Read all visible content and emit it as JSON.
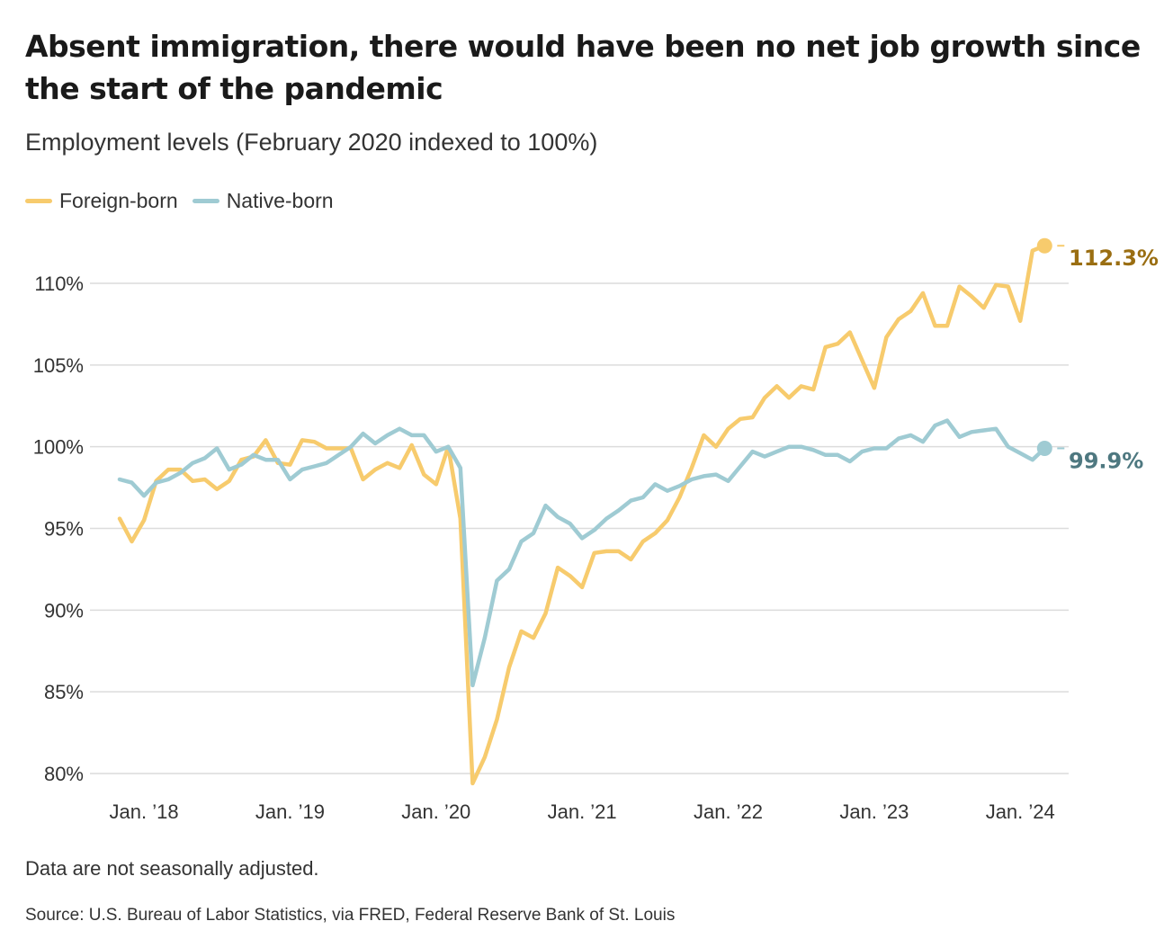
{
  "title": "Absent immigration, there would have been no net job growth since the start of the pandemic",
  "subtitle": "Employment levels (February 2020 indexed to 100%)",
  "note": "Data are not seasonally adjusted.",
  "source": "Source: U.S. Bureau of Labor Statistics, via FRED, Federal Reserve Bank of St. Louis",
  "colors": {
    "foreign": "#f7cb6d",
    "native": "#9fcbd3",
    "foreign_label": "#9a6e12",
    "native_label": "#4e7880",
    "grid": "#dcdcdc"
  },
  "chart_data": {
    "type": "line",
    "title": "Absent immigration, there would have been no net job growth since the start of the pandemic",
    "subtitle": "Employment levels (February 2020 indexed to 100%)",
    "x_start": "2017-11",
    "x_end": "2024-03",
    "x_frequency": "monthly",
    "ylim": [
      80,
      110
    ],
    "yticks": [
      80,
      85,
      90,
      95,
      100,
      105,
      110
    ],
    "ytick_labels": [
      "80%",
      "85%",
      "90%",
      "95%",
      "100%",
      "105%",
      "110%"
    ],
    "xtick_labels": [
      "Jan. ’18",
      "Jan. ’19",
      "Jan. ’20",
      "Jan. ’21",
      "Jan. ’22",
      "Jan. ’23",
      "Jan. ’24"
    ],
    "xtick_month_index": [
      2,
      14,
      26,
      38,
      50,
      62,
      74
    ],
    "grid": true,
    "legend_position": "top-left",
    "series": [
      {
        "name": "Foreign-born",
        "end_label": "112.3%",
        "values": [
          95.6,
          94.2,
          95.5,
          97.9,
          98.6,
          98.6,
          97.9,
          98.0,
          97.4,
          97.9,
          99.2,
          99.4,
          100.4,
          99.0,
          98.9,
          100.4,
          100.3,
          99.9,
          99.9,
          99.9,
          98.0,
          98.6,
          99.0,
          98.7,
          100.1,
          98.3,
          97.7,
          100.0,
          95.6,
          79.4,
          81.0,
          83.3,
          86.5,
          88.7,
          88.3,
          89.8,
          92.6,
          92.1,
          91.4,
          93.5,
          93.6,
          93.6,
          93.1,
          94.2,
          94.7,
          95.5,
          96.9,
          98.7,
          100.7,
          100.0,
          101.1,
          101.7,
          101.8,
          103.0,
          103.7,
          103.0,
          103.7,
          103.5,
          106.1,
          106.3,
          107.0,
          105.3,
          103.6,
          106.7,
          107.8,
          108.3,
          109.4,
          107.4,
          107.4,
          109.8,
          109.2,
          108.5,
          109.9,
          109.8,
          107.7,
          112.0,
          112.3
        ]
      },
      {
        "name": "Native-born",
        "end_label": "99.9%",
        "values": [
          98.0,
          97.8,
          97.0,
          97.8,
          98.0,
          98.4,
          99.0,
          99.3,
          99.9,
          98.6,
          98.9,
          99.5,
          99.2,
          99.2,
          98.0,
          98.6,
          98.8,
          99.0,
          99.5,
          100.0,
          100.8,
          100.2,
          100.7,
          101.1,
          100.7,
          100.7,
          99.7,
          100.0,
          98.7,
          85.4,
          88.3,
          91.8,
          92.5,
          94.2,
          94.7,
          96.4,
          95.7,
          95.3,
          94.4,
          94.9,
          95.6,
          96.1,
          96.7,
          96.9,
          97.7,
          97.3,
          97.6,
          98.0,
          98.2,
          98.3,
          97.9,
          98.8,
          99.7,
          99.4,
          99.7,
          100.0,
          100.0,
          99.8,
          99.5,
          99.5,
          99.1,
          99.7,
          99.9,
          99.9,
          100.5,
          100.7,
          100.3,
          101.3,
          101.6,
          100.6,
          100.9,
          101.0,
          101.1,
          100.0,
          99.6,
          99.2,
          99.9
        ]
      }
    ]
  }
}
